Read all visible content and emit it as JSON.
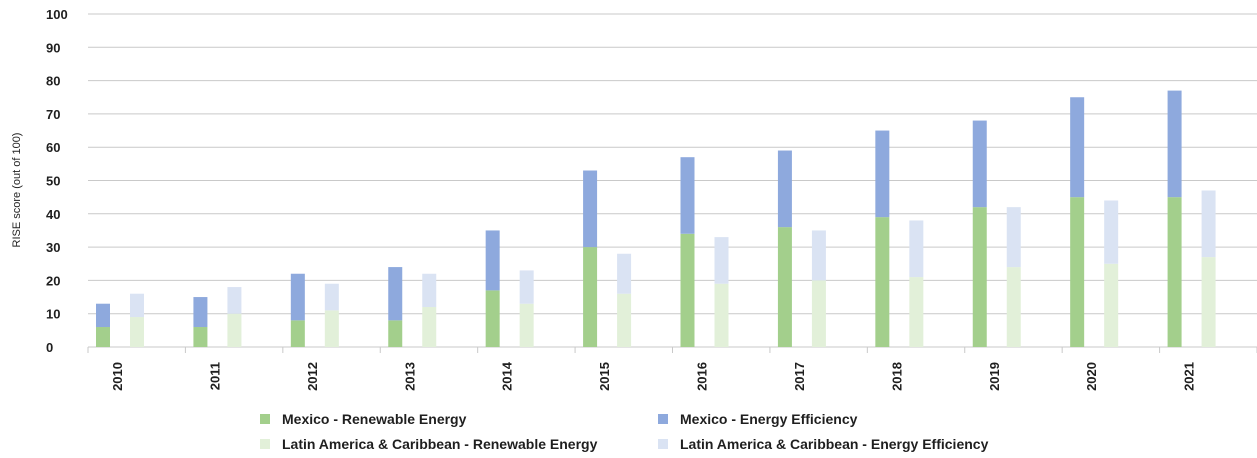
{
  "chart_data": {
    "type": "bar",
    "stacked": true,
    "categories": [
      "2010",
      "2011",
      "2012",
      "2013",
      "2014",
      "2015",
      "2016",
      "2017",
      "2018",
      "2019",
      "2020",
      "2021"
    ],
    "ylabel": "RISE score (out of 100)",
    "xlabel": "",
    "ylim": [
      0,
      100
    ],
    "yticks": [
      "0",
      "10",
      "20",
      "30",
      "40",
      "50",
      "60",
      "70",
      "80",
      "90",
      "100"
    ],
    "grid": true,
    "legend_position": "bottom",
    "groups": [
      {
        "name": "Mexico",
        "stack": [
          {
            "name": "Mexico - Renewable Energy",
            "color": "#a3cf8c",
            "values": [
              6,
              6,
              8,
              8,
              17,
              30,
              34,
              36,
              39,
              42,
              45,
              45
            ]
          },
          {
            "name": "Mexico - Energy Efficiency",
            "color": "#8ea9dd",
            "values": [
              7,
              9,
              14,
              16,
              18,
              23,
              23,
              23,
              26,
              26,
              30,
              32
            ]
          }
        ]
      },
      {
        "name": "Latin America & Caribbean",
        "stack": [
          {
            "name": "Latin America & Caribbean - Renewable Energy",
            "color": "#e2f0d9",
            "values": [
              9,
              10,
              11,
              12,
              13,
              16,
              19,
              20,
              21,
              24,
              25,
              27
            ]
          },
          {
            "name": "Latin America & Caribbean - Energy Efficiency",
            "color": "#dae3f3",
            "values": [
              7,
              8,
              8,
              10,
              10,
              12,
              14,
              15,
              17,
              18,
              19,
              20
            ]
          }
        ]
      }
    ]
  }
}
